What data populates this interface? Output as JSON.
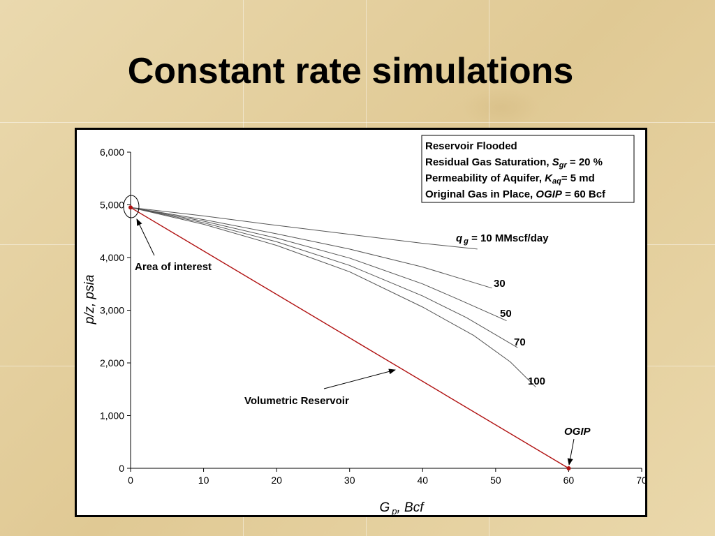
{
  "slide": {
    "title": "Constant rate simulations"
  },
  "chart_data": {
    "type": "line",
    "xlabel_main": "G",
    "xlabel_sub": "p",
    "xlabel_rest": ", Bcf",
    "ylabel": "p/z, psia",
    "xlim": [
      0,
      70
    ],
    "ylim": [
      0,
      6000
    ],
    "x_ticks": [
      0,
      10,
      20,
      30,
      40,
      50,
      60,
      70
    ],
    "x_tick_labels": [
      "0",
      "10",
      "20",
      "30",
      "40",
      "50",
      "60",
      "70"
    ],
    "y_ticks": [
      0,
      1000,
      2000,
      3000,
      4000,
      5000,
      6000
    ],
    "y_tick_labels": [
      "0",
      "1,000",
      "2,000",
      "3,000",
      "4,000",
      "5,000",
      "6,000"
    ],
    "grid": false,
    "legend_box": {
      "line1": "Reservoir Flooded",
      "line2_prefix": "Residual Gas Saturation, ",
      "line2_sym": "S",
      "line2_sub": "gr",
      "line2_suffix": " = 20 %",
      "line3_prefix": "Permeability of Aquifer, ",
      "line3_sym": "K",
      "line3_sub": "aq",
      "line3_suffix": "= 5 md",
      "line4_prefix": "Original Gas in Place, ",
      "line4_sym": "OGIP",
      "line4_suffix": " = 60 Bcf"
    },
    "volumetric": {
      "name": "Volumetric Reservoir",
      "color": "#b01010",
      "x": [
        0,
        60
      ],
      "y": [
        4950,
        0
      ]
    },
    "series": [
      {
        "name": "10",
        "color": "#555555",
        "x": [
          0,
          10,
          20,
          30,
          40,
          47.5
        ],
        "y": [
          4950,
          4790,
          4610,
          4440,
          4270,
          4160
        ]
      },
      {
        "name": "30",
        "color": "#555555",
        "x": [
          0,
          10,
          20,
          30,
          40,
          49.5
        ],
        "y": [
          4950,
          4720,
          4450,
          4160,
          3820,
          3420
        ]
      },
      {
        "name": "50",
        "color": "#555555",
        "x": [
          0,
          10,
          20,
          30,
          40,
          45,
          51.5
        ],
        "y": [
          4950,
          4690,
          4370,
          3990,
          3500,
          3200,
          2800
        ]
      },
      {
        "name": "70",
        "color": "#555555",
        "x": [
          0,
          10,
          20,
          30,
          40,
          46,
          53
        ],
        "y": [
          4950,
          4660,
          4300,
          3850,
          3270,
          2860,
          2290
        ]
      },
      {
        "name": "100",
        "color": "#555555",
        "x": [
          0,
          10,
          20,
          30,
          40,
          47,
          52,
          55.5
        ],
        "y": [
          4950,
          4630,
          4230,
          3730,
          3060,
          2520,
          2020,
          1540
        ]
      }
    ],
    "annotations": {
      "qg_sym": "q",
      "qg_sub": "g",
      "qg_text": " = 10 MMscf/day",
      "area_of_interest": "Area of interest",
      "volumetric_label": "Volumetric Reservoir",
      "ogip_label": "OGIP"
    }
  }
}
